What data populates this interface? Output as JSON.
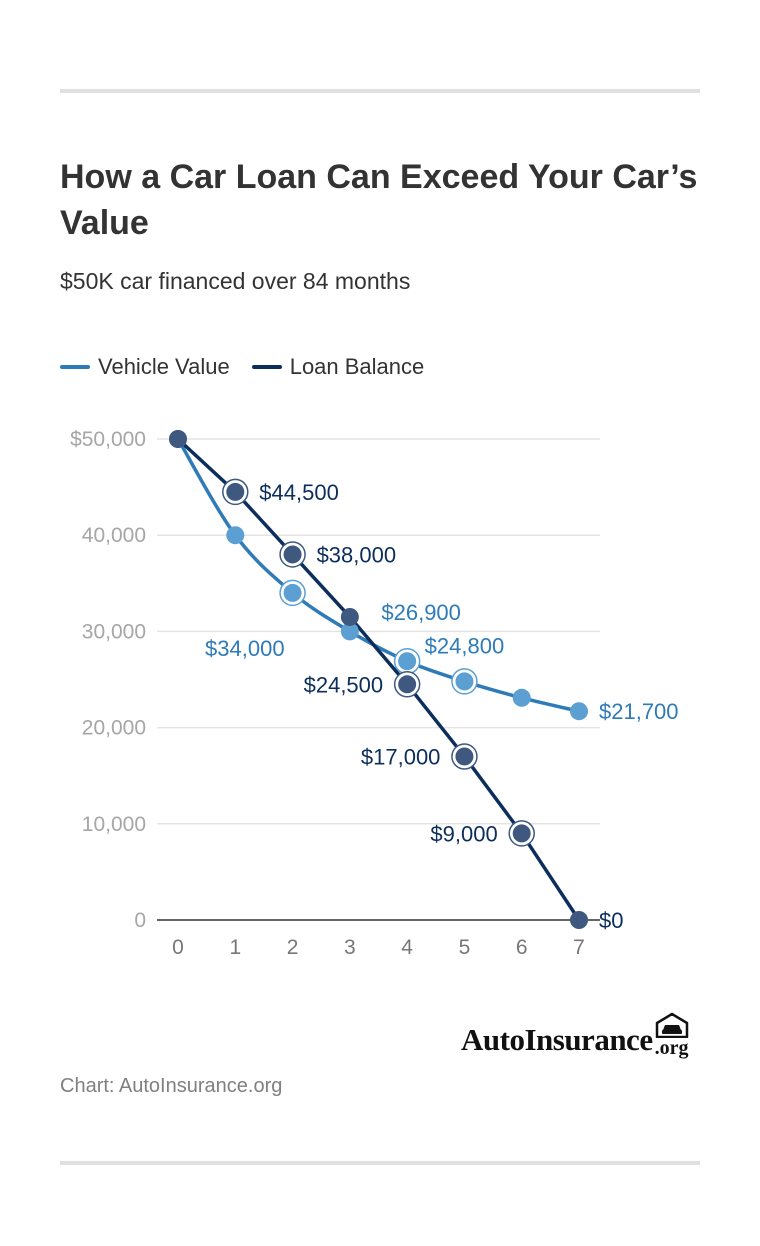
{
  "header": {
    "title": "How a Car Loan Can Exceed Your Car’s Value",
    "subtitle": "$50K car financed over 84 months"
  },
  "legend": [
    {
      "label": "Vehicle Value",
      "color": "#2e7bb8"
    },
    {
      "label": "Loan Balance",
      "color": "#0c2e5c"
    }
  ],
  "chart_data": {
    "type": "line",
    "title": "How a Car Loan Can Exceed Your Car’s Value",
    "subtitle": "$50K car financed over 84 months",
    "xlabel": "",
    "ylabel": "",
    "x": [
      0,
      1,
      2,
      3,
      4,
      5,
      6,
      7
    ],
    "xlim": [
      0,
      7
    ],
    "ylim": [
      0,
      50000
    ],
    "yticks": [
      0,
      10000,
      20000,
      30000,
      40000,
      50000
    ],
    "ytick_labels": [
      "0",
      "10,000",
      "20,000",
      "30,000",
      "40,000",
      "$50,000"
    ],
    "xtick_labels": [
      "0",
      "1",
      "2",
      "3",
      "4",
      "5",
      "6",
      "7"
    ],
    "grid": true,
    "legend_position": "top-left",
    "series": [
      {
        "name": "Vehicle Value",
        "color": "#2e7bb8",
        "values": [
          50000,
          40000,
          34000,
          30000,
          26900,
          24800,
          23100,
          21700
        ],
        "data_labels": [
          {
            "x": 2,
            "text": "$34,000",
            "anchor": "end",
            "dx": -8,
            "dy": 55
          },
          {
            "x": 4,
            "text": "$26,900",
            "anchor": "middle",
            "dx": 14,
            "dy": -49
          },
          {
            "x": 5,
            "text": "$24,800",
            "anchor": "middle",
            "dx": 0,
            "dy": -36
          },
          {
            "x": 7,
            "text": "$21,700",
            "anchor": "start",
            "dx": 20,
            "dy": 0
          }
        ]
      },
      {
        "name": "Loan Balance",
        "color": "#0c2e5c",
        "values": [
          50000,
          44500,
          38000,
          31500,
          24500,
          17000,
          9000,
          0
        ],
        "data_labels": [
          {
            "x": 1,
            "text": "$44,500",
            "anchor": "start",
            "dx": 24,
            "dy": 0
          },
          {
            "x": 2,
            "text": "$38,000",
            "anchor": "start",
            "dx": 24,
            "dy": 0
          },
          {
            "x": 4,
            "text": "$24,500",
            "anchor": "end",
            "dx": -24,
            "dy": 0
          },
          {
            "x": 5,
            "text": "$17,000",
            "anchor": "end",
            "dx": -24,
            "dy": 0
          },
          {
            "x": 6,
            "text": "$9,000",
            "anchor": "end",
            "dx": -24,
            "dy": 0
          },
          {
            "x": 7,
            "text": "$0",
            "anchor": "start",
            "dx": 20,
            "dy": 0
          }
        ]
      }
    ]
  },
  "brand": {
    "name": "AutoInsurance",
    "tld": ".org",
    "logo_icon": "garage-car-icon"
  },
  "footer": {
    "source": "Chart: AutoInsurance.org"
  }
}
